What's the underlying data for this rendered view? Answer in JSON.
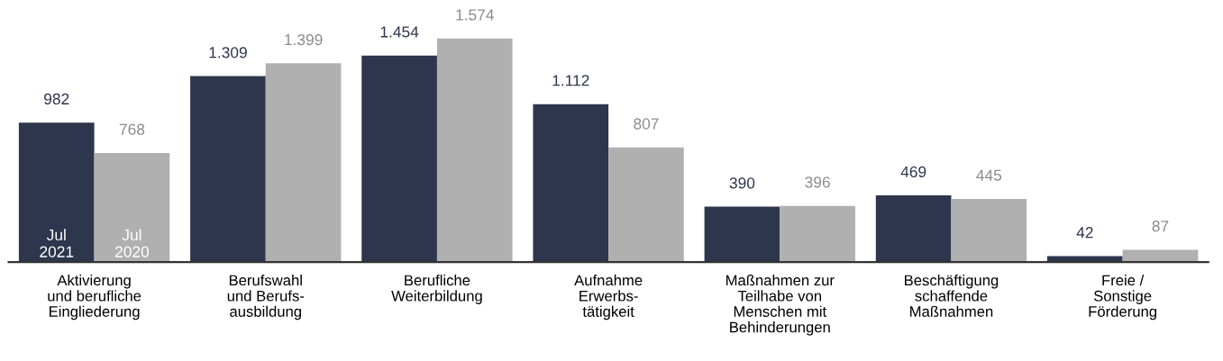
{
  "chart_data": {
    "type": "bar",
    "categories": [
      "Aktivierung\nund berufliche\nEingliederung",
      "Berufswahl\nund Berufs-\nausbildung",
      "Berufliche\nWeiterbildung",
      "Aufnahme\nErwerbs-\ntätigkeit",
      "Maßnahmen zur\nTeilhabe von\nMenschen mit\nBehinderungen",
      "Beschäftigung\nschaffende\nMaßnahmen",
      "Freie /\nSonstige\nFörderung"
    ],
    "series": [
      {
        "name": "Jul\n2021",
        "color": "#2e364d",
        "values": [
          982,
          1309,
          1454,
          1112,
          390,
          469,
          42
        ],
        "value_labels": [
          "982",
          "1.309",
          "1.454",
          "1.112",
          "390",
          "469",
          "42"
        ]
      },
      {
        "name": "Jul\n2020",
        "color": "#b0b0b0",
        "values": [
          768,
          1399,
          1574,
          807,
          396,
          445,
          87
        ],
        "value_labels": [
          "768",
          "1.399",
          "1.574",
          "807",
          "396",
          "445",
          "87"
        ]
      }
    ],
    "tick_labels": "x",
    "grid": false,
    "legend": false
  }
}
